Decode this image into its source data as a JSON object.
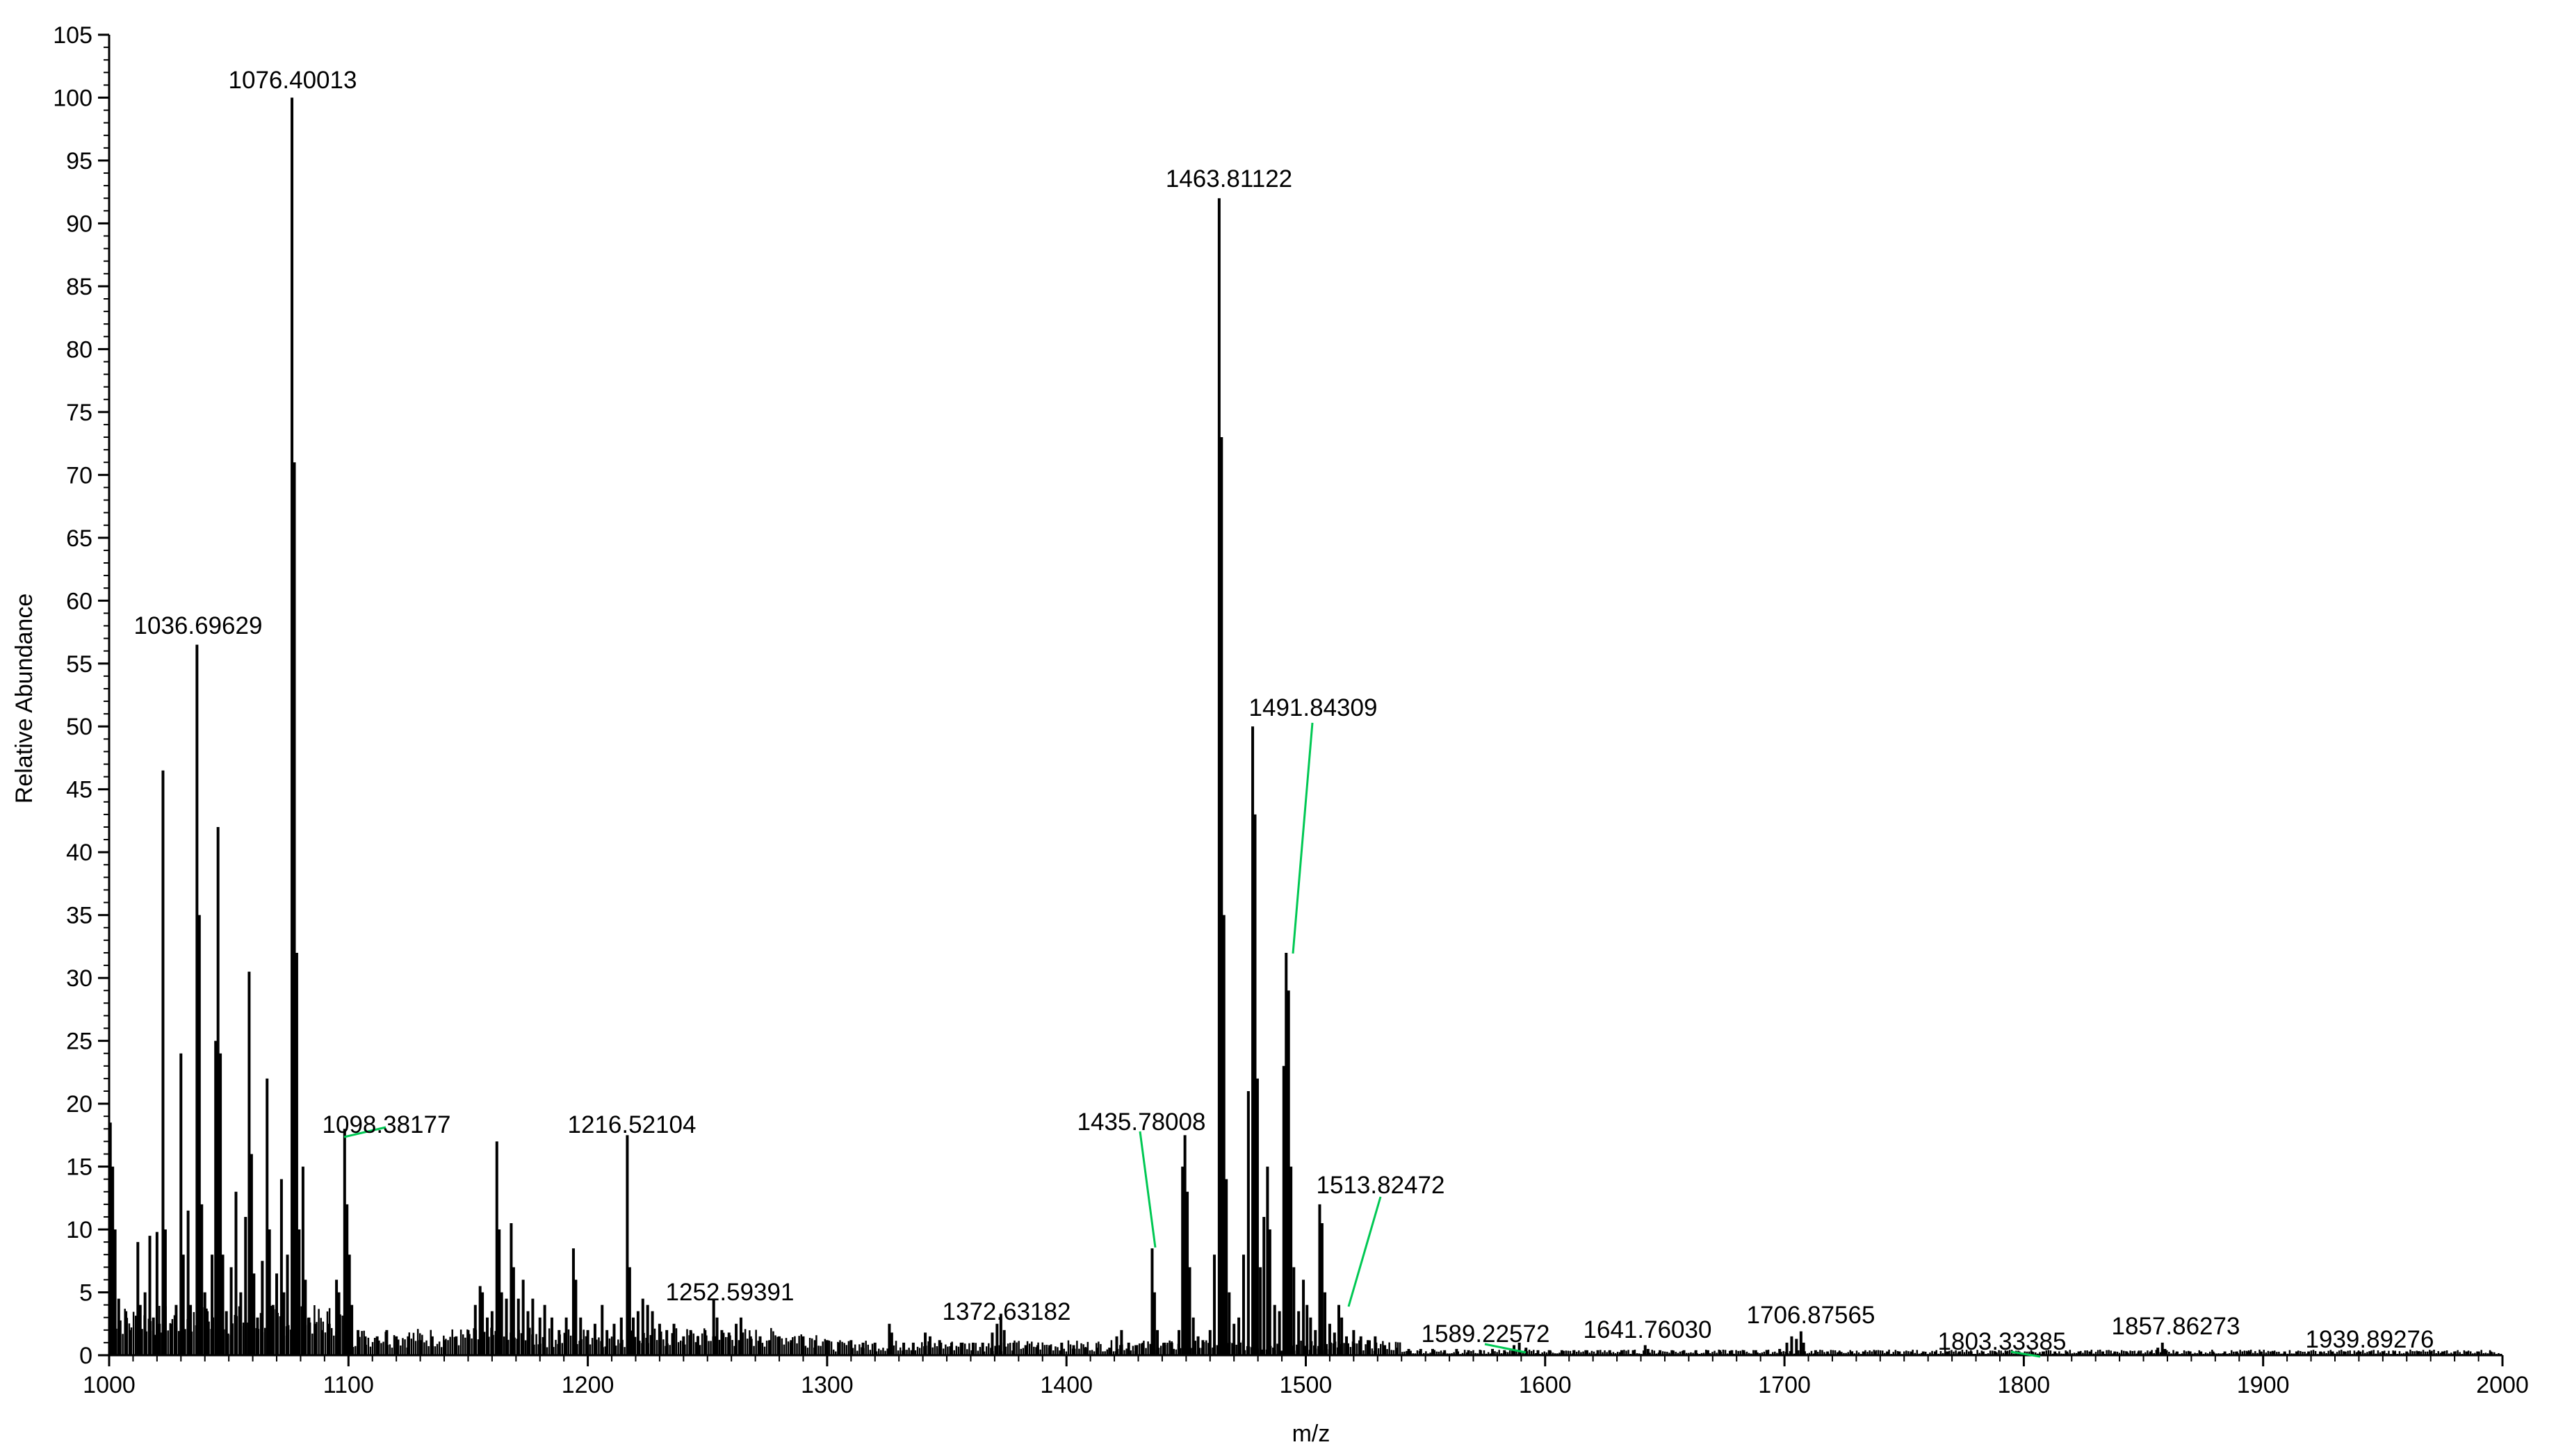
{
  "chart_data": {
    "type": "line",
    "style": "mass-spectrum-sticks",
    "xlabel": "m/z",
    "ylabel": "Relative Abundance",
    "xlim": [
      1000,
      2000
    ],
    "ylim": [
      0,
      105
    ],
    "x_ticks": [
      1000,
      1100,
      1200,
      1300,
      1400,
      1500,
      1600,
      1700,
      1800,
      1900,
      2000
    ],
    "y_ticks": [
      0,
      5,
      10,
      15,
      20,
      25,
      30,
      35,
      40,
      45,
      50,
      55,
      60,
      65,
      70,
      75,
      80,
      85,
      90,
      95,
      100,
      105
    ],
    "grid": false,
    "legend": "none",
    "line_color": "#000000",
    "leader_color": "#00c853",
    "labeled_peaks": [
      {
        "label": "1036.69629",
        "x": 1036.7,
        "y": 56.5
      },
      {
        "label": "1076.40013",
        "x": 1076.4,
        "y": 100
      },
      {
        "label": "1098.38177",
        "x": 1098.4,
        "y": 18.0
      },
      {
        "label": "1216.52104",
        "x": 1216.5,
        "y": 17.5
      },
      {
        "label": "1252.59391",
        "x": 1252.6,
        "y": 4.5
      },
      {
        "label": "1372.63182",
        "x": 1372.6,
        "y": 3.3
      },
      {
        "label": "1435.78008",
        "x": 1435.8,
        "y": 8.5
      },
      {
        "label": "1463.81122",
        "x": 1463.8,
        "y": 92.0
      },
      {
        "label": "1491.84309",
        "x": 1491.8,
        "y": 32.0
      },
      {
        "label": "1513.82472",
        "x": 1513.8,
        "y": 4.0
      },
      {
        "label": "1589.22572",
        "x": 1589.2,
        "y": 1.0
      },
      {
        "label": "1641.76030",
        "x": 1641.8,
        "y": 0.8
      },
      {
        "label": "1706.87565",
        "x": 1706.9,
        "y": 1.9
      },
      {
        "label": "1803.33385",
        "x": 1803.3,
        "y": 0.3
      },
      {
        "label": "1857.86273",
        "x": 1857.9,
        "y": 1.0
      },
      {
        "label": "1939.89276",
        "x": 1939.9,
        "y": 0.3
      }
    ],
    "peaks": [
      {
        "x": 1000.5,
        "y": 18.5
      },
      {
        "x": 1001.5,
        "y": 15.0
      },
      {
        "x": 1002.5,
        "y": 10.0
      },
      {
        "x": 1004,
        "y": 4.5
      },
      {
        "x": 1007,
        "y": 3.5
      },
      {
        "x": 1009,
        "y": 2.0
      },
      {
        "x": 1012,
        "y": 9.0
      },
      {
        "x": 1013,
        "y": 4.0
      },
      {
        "x": 1015,
        "y": 5.0
      },
      {
        "x": 1017,
        "y": 9.5
      },
      {
        "x": 1018.5,
        "y": 3.0
      },
      {
        "x": 1020,
        "y": 9.8
      },
      {
        "x": 1021,
        "y": 2.5
      },
      {
        "x": 1022.5,
        "y": 46.5
      },
      {
        "x": 1023.5,
        "y": 10.0
      },
      {
        "x": 1026,
        "y": 2.5
      },
      {
        "x": 1028,
        "y": 4.0
      },
      {
        "x": 1030,
        "y": 24.0
      },
      {
        "x": 1031,
        "y": 8.0
      },
      {
        "x": 1033,
        "y": 11.5
      },
      {
        "x": 1034,
        "y": 4.0
      },
      {
        "x": 1036.7,
        "y": 56.5
      },
      {
        "x": 1037.7,
        "y": 35.0
      },
      {
        "x": 1038.7,
        "y": 12.0
      },
      {
        "x": 1040,
        "y": 5.0
      },
      {
        "x": 1041,
        "y": 3.5
      },
      {
        "x": 1043,
        "y": 8.0
      },
      {
        "x": 1044.5,
        "y": 25.0
      },
      {
        "x": 1045.5,
        "y": 42.0
      },
      {
        "x": 1046.5,
        "y": 24.0
      },
      {
        "x": 1047.5,
        "y": 8.0
      },
      {
        "x": 1049,
        "y": 3.5
      },
      {
        "x": 1051,
        "y": 7.0
      },
      {
        "x": 1053,
        "y": 13.0
      },
      {
        "x": 1055,
        "y": 5.0
      },
      {
        "x": 1057,
        "y": 11.0
      },
      {
        "x": 1058.5,
        "y": 30.5
      },
      {
        "x": 1059.5,
        "y": 16.0
      },
      {
        "x": 1060.5,
        "y": 6.5
      },
      {
        "x": 1062,
        "y": 3.0
      },
      {
        "x": 1064,
        "y": 7.5
      },
      {
        "x": 1066,
        "y": 22.0
      },
      {
        "x": 1067,
        "y": 10.0
      },
      {
        "x": 1068.5,
        "y": 4.0
      },
      {
        "x": 1070,
        "y": 6.5
      },
      {
        "x": 1072,
        "y": 14.0
      },
      {
        "x": 1073,
        "y": 5.0
      },
      {
        "x": 1074.5,
        "y": 8.0
      },
      {
        "x": 1076.4,
        "y": 100
      },
      {
        "x": 1077.4,
        "y": 71.0
      },
      {
        "x": 1078.4,
        "y": 32.0
      },
      {
        "x": 1079.4,
        "y": 10.0
      },
      {
        "x": 1081,
        "y": 15.0
      },
      {
        "x": 1082,
        "y": 6.0
      },
      {
        "x": 1083.5,
        "y": 3.0
      },
      {
        "x": 1086,
        "y": 2.5
      },
      {
        "x": 1089,
        "y": 2.0
      },
      {
        "x": 1092,
        "y": 2.5
      },
      {
        "x": 1095,
        "y": 6.0
      },
      {
        "x": 1096,
        "y": 5.0
      },
      {
        "x": 1098.4,
        "y": 18.0
      },
      {
        "x": 1099.4,
        "y": 12.0
      },
      {
        "x": 1100.4,
        "y": 8.0
      },
      {
        "x": 1101.4,
        "y": 4.0
      },
      {
        "x": 1104,
        "y": 2.0
      },
      {
        "x": 1107,
        "y": 1.5
      },
      {
        "x": 1112,
        "y": 1.5
      },
      {
        "x": 1116,
        "y": 2.0
      },
      {
        "x": 1120,
        "y": 1.5
      },
      {
        "x": 1125,
        "y": 1.5
      },
      {
        "x": 1130,
        "y": 1.2
      },
      {
        "x": 1135,
        "y": 1.5
      },
      {
        "x": 1140,
        "y": 1.2
      },
      {
        "x": 1145,
        "y": 1.5
      },
      {
        "x": 1150,
        "y": 2.0
      },
      {
        "x": 1153,
        "y": 4.0
      },
      {
        "x": 1155,
        "y": 5.5
      },
      {
        "x": 1156,
        "y": 5.0
      },
      {
        "x": 1158,
        "y": 3.0
      },
      {
        "x": 1160,
        "y": 3.5
      },
      {
        "x": 1162,
        "y": 17.0
      },
      {
        "x": 1163,
        "y": 10.0
      },
      {
        "x": 1164,
        "y": 5.0
      },
      {
        "x": 1166,
        "y": 4.5
      },
      {
        "x": 1168,
        "y": 10.5
      },
      {
        "x": 1169,
        "y": 7.0
      },
      {
        "x": 1171,
        "y": 4.5
      },
      {
        "x": 1173,
        "y": 6.0
      },
      {
        "x": 1175,
        "y": 3.5
      },
      {
        "x": 1177,
        "y": 4.5
      },
      {
        "x": 1180,
        "y": 3.0
      },
      {
        "x": 1182,
        "y": 4.0
      },
      {
        "x": 1185,
        "y": 3.0
      },
      {
        "x": 1188,
        "y": 2.0
      },
      {
        "x": 1191,
        "y": 3.0
      },
      {
        "x": 1194,
        "y": 8.5
      },
      {
        "x": 1195,
        "y": 6.0
      },
      {
        "x": 1197,
        "y": 3.0
      },
      {
        "x": 1200,
        "y": 2.0
      },
      {
        "x": 1203,
        "y": 2.5
      },
      {
        "x": 1206,
        "y": 4.0
      },
      {
        "x": 1208,
        "y": 2.0
      },
      {
        "x": 1211,
        "y": 2.5
      },
      {
        "x": 1214,
        "y": 3.0
      },
      {
        "x": 1216.5,
        "y": 17.5
      },
      {
        "x": 1217.5,
        "y": 7.0
      },
      {
        "x": 1219,
        "y": 3.0
      },
      {
        "x": 1221,
        "y": 3.5
      },
      {
        "x": 1223,
        "y": 4.5
      },
      {
        "x": 1225,
        "y": 4.0
      },
      {
        "x": 1227,
        "y": 3.5
      },
      {
        "x": 1230,
        "y": 2.5
      },
      {
        "x": 1233,
        "y": 2.0
      },
      {
        "x": 1236,
        "y": 2.5
      },
      {
        "x": 1240,
        "y": 1.5
      },
      {
        "x": 1243,
        "y": 2.0
      },
      {
        "x": 1246,
        "y": 1.5
      },
      {
        "x": 1249,
        "y": 2.0
      },
      {
        "x": 1252.6,
        "y": 4.5
      },
      {
        "x": 1254,
        "y": 3.0
      },
      {
        "x": 1256,
        "y": 2.0
      },
      {
        "x": 1259,
        "y": 1.8
      },
      {
        "x": 1262,
        "y": 2.5
      },
      {
        "x": 1264,
        "y": 3.0
      },
      {
        "x": 1268,
        "y": 1.5
      },
      {
        "x": 1272,
        "y": 1.5
      },
      {
        "x": 1276,
        "y": 1.2
      },
      {
        "x": 1280,
        "y": 1.5
      },
      {
        "x": 1285,
        "y": 1.2
      },
      {
        "x": 1290,
        "y": 1.5
      },
      {
        "x": 1295,
        "y": 1.2
      },
      {
        "x": 1300,
        "y": 1.2
      },
      {
        "x": 1305,
        "y": 1.0
      },
      {
        "x": 1310,
        "y": 1.2
      },
      {
        "x": 1315,
        "y": 1.0
      },
      {
        "x": 1320,
        "y": 1.0
      },
      {
        "x": 1326,
        "y": 2.5
      },
      {
        "x": 1327,
        "y": 1.8
      },
      {
        "x": 1332,
        "y": 1.0
      },
      {
        "x": 1336,
        "y": 1.0
      },
      {
        "x": 1341,
        "y": 1.8
      },
      {
        "x": 1343,
        "y": 1.5
      },
      {
        "x": 1347,
        "y": 1.2
      },
      {
        "x": 1352,
        "y": 1.0
      },
      {
        "x": 1356,
        "y": 1.0
      },
      {
        "x": 1361,
        "y": 1.0
      },
      {
        "x": 1365,
        "y": 1.0
      },
      {
        "x": 1369,
        "y": 1.8
      },
      {
        "x": 1371,
        "y": 2.5
      },
      {
        "x": 1372.6,
        "y": 3.3
      },
      {
        "x": 1374,
        "y": 2.0
      },
      {
        "x": 1378,
        "y": 1.0
      },
      {
        "x": 1383,
        "y": 0.8
      },
      {
        "x": 1388,
        "y": 0.8
      },
      {
        "x": 1393,
        "y": 0.8
      },
      {
        "x": 1398,
        "y": 1.0
      },
      {
        "x": 1403,
        "y": 0.8
      },
      {
        "x": 1408,
        "y": 0.6
      },
      {
        "x": 1413,
        "y": 0.6
      },
      {
        "x": 1418,
        "y": 0.6
      },
      {
        "x": 1421,
        "y": 1.5
      },
      {
        "x": 1423,
        "y": 2.0
      },
      {
        "x": 1426,
        "y": 1.0
      },
      {
        "x": 1429,
        "y": 0.8
      },
      {
        "x": 1432,
        "y": 1.0
      },
      {
        "x": 1435.8,
        "y": 8.5
      },
      {
        "x": 1436.8,
        "y": 5.0
      },
      {
        "x": 1438,
        "y": 2.0
      },
      {
        "x": 1441,
        "y": 1.0
      },
      {
        "x": 1444,
        "y": 1.0
      },
      {
        "x": 1447,
        "y": 2.0
      },
      {
        "x": 1448.5,
        "y": 15.0
      },
      {
        "x": 1449.5,
        "y": 17.5
      },
      {
        "x": 1450.5,
        "y": 13.0
      },
      {
        "x": 1451.5,
        "y": 7.0
      },
      {
        "x": 1453,
        "y": 3.0
      },
      {
        "x": 1455,
        "y": 1.5
      },
      {
        "x": 1457,
        "y": 1.2
      },
      {
        "x": 1460,
        "y": 2.0
      },
      {
        "x": 1461.8,
        "y": 8.0
      },
      {
        "x": 1463.8,
        "y": 92.0
      },
      {
        "x": 1464.8,
        "y": 73.0
      },
      {
        "x": 1465.8,
        "y": 35.0
      },
      {
        "x": 1466.8,
        "y": 14.0
      },
      {
        "x": 1468,
        "y": 5.0
      },
      {
        "x": 1470,
        "y": 2.5
      },
      {
        "x": 1472,
        "y": 3.0
      },
      {
        "x": 1474,
        "y": 8.0
      },
      {
        "x": 1476,
        "y": 21.0
      },
      {
        "x": 1477.8,
        "y": 50.0
      },
      {
        "x": 1478.8,
        "y": 43.0
      },
      {
        "x": 1479.8,
        "y": 22.0
      },
      {
        "x": 1481,
        "y": 7.0
      },
      {
        "x": 1482.5,
        "y": 11.0
      },
      {
        "x": 1484,
        "y": 15.0
      },
      {
        "x": 1485,
        "y": 10.0
      },
      {
        "x": 1487,
        "y": 4.0
      },
      {
        "x": 1489,
        "y": 3.5
      },
      {
        "x": 1490.8,
        "y": 23.0
      },
      {
        "x": 1491.8,
        "y": 32.0
      },
      {
        "x": 1492.8,
        "y": 29.0
      },
      {
        "x": 1493.8,
        "y": 15.0
      },
      {
        "x": 1495,
        "y": 7.0
      },
      {
        "x": 1497,
        "y": 3.5
      },
      {
        "x": 1499,
        "y": 6.0
      },
      {
        "x": 1500.5,
        "y": 4.0
      },
      {
        "x": 1502,
        "y": 3.0
      },
      {
        "x": 1504,
        "y": 2.0
      },
      {
        "x": 1505.8,
        "y": 12.0
      },
      {
        "x": 1506.8,
        "y": 10.5
      },
      {
        "x": 1508,
        "y": 5.0
      },
      {
        "x": 1510,
        "y": 2.5
      },
      {
        "x": 1512,
        "y": 1.8
      },
      {
        "x": 1513.8,
        "y": 4.0
      },
      {
        "x": 1515,
        "y": 3.0
      },
      {
        "x": 1517,
        "y": 1.5
      },
      {
        "x": 1520,
        "y": 2.0
      },
      {
        "x": 1523,
        "y": 1.5
      },
      {
        "x": 1526,
        "y": 1.2
      },
      {
        "x": 1529,
        "y": 1.5
      },
      {
        "x": 1533,
        "y": 0.8
      },
      {
        "x": 1538,
        "y": 0.6
      },
      {
        "x": 1543,
        "y": 0.5
      },
      {
        "x": 1548,
        "y": 0.5
      },
      {
        "x": 1553,
        "y": 0.5
      },
      {
        "x": 1558,
        "y": 0.4
      },
      {
        "x": 1563,
        "y": 0.5
      },
      {
        "x": 1568,
        "y": 0.4
      },
      {
        "x": 1573,
        "y": 0.4
      },
      {
        "x": 1578,
        "y": 0.5
      },
      {
        "x": 1583,
        "y": 0.4
      },
      {
        "x": 1587,
        "y": 0.8
      },
      {
        "x": 1589.2,
        "y": 1.0
      },
      {
        "x": 1592,
        "y": 0.6
      },
      {
        "x": 1597,
        "y": 0.4
      },
      {
        "x": 1602,
        "y": 0.4
      },
      {
        "x": 1607,
        "y": 0.4
      },
      {
        "x": 1612,
        "y": 0.4
      },
      {
        "x": 1617,
        "y": 0.4
      },
      {
        "x": 1622,
        "y": 0.4
      },
      {
        "x": 1627,
        "y": 0.4
      },
      {
        "x": 1632,
        "y": 0.4
      },
      {
        "x": 1637,
        "y": 0.4
      },
      {
        "x": 1641.8,
        "y": 0.8
      },
      {
        "x": 1643,
        "y": 0.5
      },
      {
        "x": 1648,
        "y": 0.4
      },
      {
        "x": 1653,
        "y": 0.4
      },
      {
        "x": 1658,
        "y": 0.4
      },
      {
        "x": 1663,
        "y": 0.4
      },
      {
        "x": 1668,
        "y": 0.4
      },
      {
        "x": 1673,
        "y": 0.4
      },
      {
        "x": 1678,
        "y": 0.4
      },
      {
        "x": 1683,
        "y": 0.4
      },
      {
        "x": 1688,
        "y": 0.4
      },
      {
        "x": 1693,
        "y": 0.4
      },
      {
        "x": 1698,
        "y": 0.5
      },
      {
        "x": 1701,
        "y": 1.0
      },
      {
        "x": 1703,
        "y": 1.5
      },
      {
        "x": 1705,
        "y": 1.3
      },
      {
        "x": 1706.9,
        "y": 1.9
      },
      {
        "x": 1708,
        "y": 1.0
      },
      {
        "x": 1713,
        "y": 0.4
      },
      {
        "x": 1718,
        "y": 0.3
      },
      {
        "x": 1723,
        "y": 0.3
      },
      {
        "x": 1728,
        "y": 0.3
      },
      {
        "x": 1733,
        "y": 0.3
      },
      {
        "x": 1738,
        "y": 0.3
      },
      {
        "x": 1743,
        "y": 0.3
      },
      {
        "x": 1748,
        "y": 0.3
      },
      {
        "x": 1753,
        "y": 0.3
      },
      {
        "x": 1758,
        "y": 0.3
      },
      {
        "x": 1763,
        "y": 0.3
      },
      {
        "x": 1768,
        "y": 0.3
      },
      {
        "x": 1773,
        "y": 0.3
      },
      {
        "x": 1778,
        "y": 0.3
      },
      {
        "x": 1783,
        "y": 0.3
      },
      {
        "x": 1788,
        "y": 0.3
      },
      {
        "x": 1793,
        "y": 0.3
      },
      {
        "x": 1798,
        "y": 0.3
      },
      {
        "x": 1803.3,
        "y": 0.3
      },
      {
        "x": 1808,
        "y": 0.3
      },
      {
        "x": 1813,
        "y": 0.3
      },
      {
        "x": 1818,
        "y": 0.3
      },
      {
        "x": 1823,
        "y": 0.3
      },
      {
        "x": 1828,
        "y": 0.3
      },
      {
        "x": 1833,
        "y": 0.3
      },
      {
        "x": 1838,
        "y": 0.3
      },
      {
        "x": 1843,
        "y": 0.3
      },
      {
        "x": 1848,
        "y": 0.3
      },
      {
        "x": 1853,
        "y": 0.3
      },
      {
        "x": 1856,
        "y": 0.6
      },
      {
        "x": 1857.9,
        "y": 1.0
      },
      {
        "x": 1859,
        "y": 0.5
      },
      {
        "x": 1864,
        "y": 0.3
      },
      {
        "x": 1869,
        "y": 0.3
      },
      {
        "x": 1874,
        "y": 0.3
      },
      {
        "x": 1879,
        "y": 0.3
      },
      {
        "x": 1884,
        "y": 0.3
      },
      {
        "x": 1889,
        "y": 0.3
      },
      {
        "x": 1894,
        "y": 0.3
      },
      {
        "x": 1899,
        "y": 0.3
      },
      {
        "x": 1904,
        "y": 0.3
      },
      {
        "x": 1909,
        "y": 0.3
      },
      {
        "x": 1914,
        "y": 0.3
      },
      {
        "x": 1919,
        "y": 0.3
      },
      {
        "x": 1924,
        "y": 0.3
      },
      {
        "x": 1929,
        "y": 0.3
      },
      {
        "x": 1934,
        "y": 0.3
      },
      {
        "x": 1939.9,
        "y": 0.3
      },
      {
        "x": 1945,
        "y": 0.3
      },
      {
        "x": 1950,
        "y": 0.3
      },
      {
        "x": 1955,
        "y": 0.3
      },
      {
        "x": 1960,
        "y": 0.3
      },
      {
        "x": 1965,
        "y": 0.3
      },
      {
        "x": 1970,
        "y": 0.3
      },
      {
        "x": 1975,
        "y": 0.3
      },
      {
        "x": 1980,
        "y": 0.3
      },
      {
        "x": 1985,
        "y": 0.3
      },
      {
        "x": 1990,
        "y": 0.3
      },
      {
        "x": 1995,
        "y": 0.3
      }
    ]
  }
}
